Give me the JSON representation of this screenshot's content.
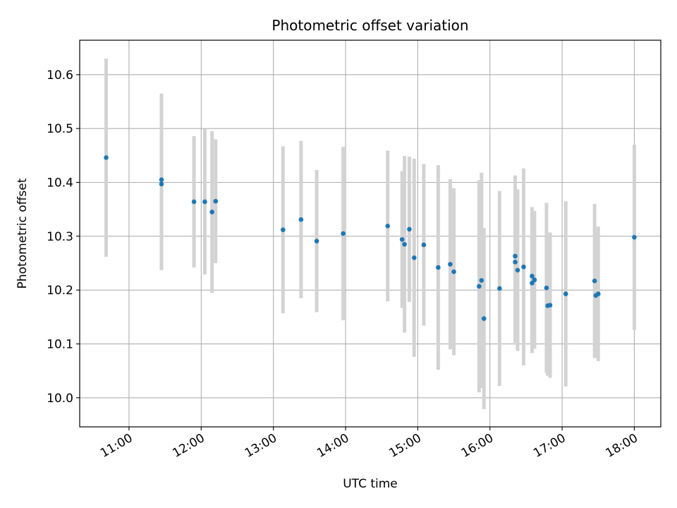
{
  "chart_data": {
    "type": "scatter",
    "title": "Photometric offset variation",
    "xlabel": "UTC time",
    "ylabel": "Photometric offset",
    "x_ticks": [
      "11:00",
      "12:00",
      "13:00",
      "14:00",
      "15:00",
      "16:00",
      "17:00",
      "18:00"
    ],
    "y_ticks": [
      "10.0",
      "10.1",
      "10.2",
      "10.3",
      "10.4",
      "10.5",
      "10.6"
    ],
    "xlim": [
      "10:19",
      "18:22"
    ],
    "ylim": [
      9.946,
      10.664
    ],
    "grid": true,
    "point_color": "#1f77b4",
    "errorbar_color": "#d3d3d3",
    "series": [
      {
        "points": [
          {
            "x": "10:41",
            "y": 10.446,
            "err": 0.184
          },
          {
            "x": "11:27",
            "y": 10.405,
            "err": 0.16
          },
          {
            "x": "11:27",
            "y": 10.397,
            "err": 0.16
          },
          {
            "x": "11:54",
            "y": 10.364,
            "err": 0.122
          },
          {
            "x": "12:03",
            "y": 10.364,
            "err": 0.135
          },
          {
            "x": "12:09",
            "y": 10.345,
            "err": 0.15
          },
          {
            "x": "12:12",
            "y": 10.365,
            "err": 0.115
          },
          {
            "x": "13:08",
            "y": 10.312,
            "err": 0.155
          },
          {
            "x": "13:23",
            "y": 10.331,
            "err": 0.146
          },
          {
            "x": "13:36",
            "y": 10.291,
            "err": 0.132
          },
          {
            "x": "13:58",
            "y": 10.305,
            "err": 0.161
          },
          {
            "x": "14:35",
            "y": 10.319,
            "err": 0.14
          },
          {
            "x": "14:47",
            "y": 10.294,
            "err": 0.127
          },
          {
            "x": "14:49",
            "y": 10.285,
            "err": 0.164
          },
          {
            "x": "14:53",
            "y": 10.313,
            "err": 0.135
          },
          {
            "x": "14:57",
            "y": 10.26,
            "err": 0.184
          },
          {
            "x": "15:05",
            "y": 10.284,
            "err": 0.15
          },
          {
            "x": "15:17",
            "y": 10.242,
            "err": 0.19
          },
          {
            "x": "15:27",
            "y": 10.248,
            "err": 0.158
          },
          {
            "x": "15:30",
            "y": 10.234,
            "err": 0.155
          },
          {
            "x": "15:51",
            "y": 10.207,
            "err": 0.197
          },
          {
            "x": "15:53",
            "y": 10.218,
            "err": 0.2
          },
          {
            "x": "15:55",
            "y": 10.147,
            "err": 0.168
          },
          {
            "x": "16:08",
            "y": 10.203,
            "err": 0.181
          },
          {
            "x": "16:21",
            "y": 10.263,
            "err": 0.15
          },
          {
            "x": "16:21",
            "y": 10.252,
            "err": 0.15
          },
          {
            "x": "16:23",
            "y": 10.237,
            "err": 0.15
          },
          {
            "x": "16:28",
            "y": 10.243,
            "err": 0.183
          },
          {
            "x": "16:35",
            "y": 10.226,
            "err": 0.128
          },
          {
            "x": "16:35",
            "y": 10.213,
            "err": 0.13
          },
          {
            "x": "16:37",
            "y": 10.219,
            "err": 0.128
          },
          {
            "x": "16:47",
            "y": 10.204,
            "err": 0.158
          },
          {
            "x": "16:48",
            "y": 10.171,
            "err": 0.13
          },
          {
            "x": "16:50",
            "y": 10.172,
            "err": 0.135
          },
          {
            "x": "17:03",
            "y": 10.193,
            "err": 0.172
          },
          {
            "x": "17:27",
            "y": 10.217,
            "err": 0.143
          },
          {
            "x": "17:28",
            "y": 10.19,
            "err": 0.116
          },
          {
            "x": "17:30",
            "y": 10.193,
            "err": 0.125
          },
          {
            "x": "18:00",
            "y": 10.298,
            "err": 0.172
          }
        ]
      }
    ]
  }
}
